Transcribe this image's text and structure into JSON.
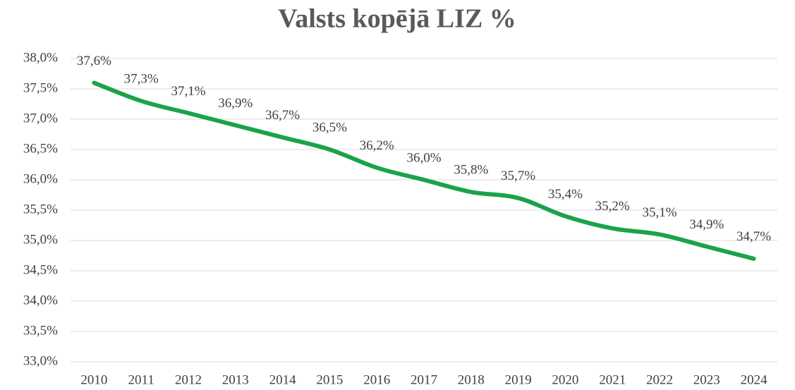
{
  "chart_data": {
    "type": "line",
    "title": "Valsts kopējā LIZ %",
    "categories": [
      "2010",
      "2011",
      "2012",
      "2013",
      "2014",
      "2015",
      "2016",
      "2017",
      "2018",
      "2019",
      "2020",
      "2021",
      "2022",
      "2023",
      "2024"
    ],
    "series": [
      {
        "name": "LIZ %",
        "color": "#1aa34a",
        "values": [
          37.6,
          37.3,
          37.1,
          36.9,
          36.7,
          36.5,
          36.2,
          36.0,
          35.8,
          35.7,
          35.4,
          35.2,
          35.1,
          34.9,
          34.7
        ],
        "value_labels": [
          "37,6%",
          "37,3%",
          "37,1%",
          "36,9%",
          "36,7%",
          "36,5%",
          "36,2%",
          "36,0%",
          "35,8%",
          "35,7%",
          "35,4%",
          "35,2%",
          "35,1%",
          "34,9%",
          "34,7%"
        ]
      }
    ],
    "ylim": [
      33,
      38
    ],
    "yticks": [
      {
        "value": 33,
        "label": "33,0%"
      },
      {
        "value": 33.5,
        "label": "33,5%"
      },
      {
        "value": 34,
        "label": "34,0%"
      },
      {
        "value": 34.5,
        "label": "34,5%"
      },
      {
        "value": 35,
        "label": "35,0%"
      },
      {
        "value": 35.5,
        "label": "35,5%"
      },
      {
        "value": 36,
        "label": "36,0%"
      },
      {
        "value": 36.5,
        "label": "36,5%"
      },
      {
        "value": 37,
        "label": "37,0%"
      },
      {
        "value": 37.5,
        "label": "37,5%"
      },
      {
        "value": 38,
        "label": "38,0%"
      }
    ],
    "grid": true
  }
}
